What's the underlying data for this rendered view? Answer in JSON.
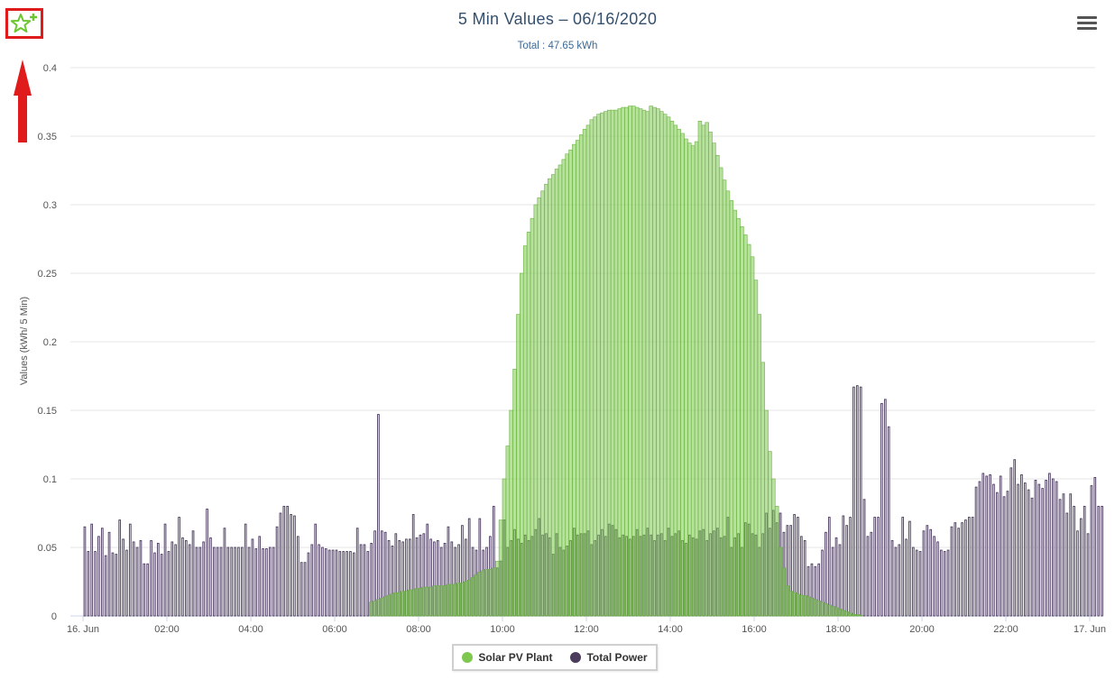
{
  "header": {
    "title": "5 Min Values – 06/16/2020",
    "subtitle": "Total : 47.65 kWh"
  },
  "colors": {
    "solar": "#7ec850",
    "total": "#4b3c5e",
    "annotation": "#e01b1b",
    "star": "#6cc62f"
  },
  "icons": {
    "favorite": "star-plus-icon",
    "menu": "hamburger-menu-icon",
    "annotation": "red-up-arrow"
  },
  "legend": {
    "items": [
      {
        "label": "Solar PV Plant",
        "color": "#7ec850"
      },
      {
        "label": "Total Power",
        "color": "#4b3c5e"
      }
    ]
  },
  "chart_data": {
    "type": "bar",
    "title": "5 Min Values – 06/16/2020",
    "subtitle": "Total : 47.65 kWh",
    "xlabel": "",
    "ylabel": "Values (kWh/ 5 Min)",
    "ylim": [
      0,
      0.4
    ],
    "yticks": [
      "0",
      "0.05",
      "0.1",
      "0.15",
      "0.2",
      "0.25",
      "0.3",
      "0.35",
      "0.4"
    ],
    "xticks": [
      "16. Jun",
      "02:00",
      "04:00",
      "06:00",
      "08:00",
      "10:00",
      "12:00",
      "14:00",
      "16:00",
      "18:00",
      "20:00",
      "22:00",
      "17. Jun"
    ],
    "interval_minutes": 5,
    "grid": true,
    "legend_position": "bottom",
    "series": [
      {
        "name": "Solar PV Plant",
        "color": "#7ec850",
        "values": [
          0,
          0,
          0,
          0,
          0,
          0,
          0,
          0,
          0,
          0,
          0,
          0,
          0,
          0,
          0,
          0,
          0,
          0,
          0,
          0,
          0,
          0,
          0,
          0,
          0,
          0,
          0,
          0,
          0,
          0,
          0,
          0,
          0,
          0,
          0,
          0,
          0,
          0,
          0,
          0,
          0,
          0,
          0,
          0,
          0,
          0,
          0,
          0,
          0,
          0,
          0,
          0,
          0,
          0,
          0,
          0,
          0,
          0,
          0,
          0,
          0,
          0,
          0,
          0,
          0,
          0,
          0,
          0,
          0,
          0,
          0,
          0,
          0,
          0,
          0,
          0,
          0,
          0,
          0,
          0,
          0,
          0,
          0.01,
          0.011,
          0.012,
          0.013,
          0.014,
          0.015,
          0.016,
          0.017,
          0.017,
          0.018,
          0.018,
          0.019,
          0.019,
          0.02,
          0.02,
          0.021,
          0.021,
          0.021,
          0.022,
          0.022,
          0.022,
          0.022,
          0.023,
          0.023,
          0.023,
          0.024,
          0.024,
          0.025,
          0.026,
          0.028,
          0.03,
          0.032,
          0.033,
          0.034,
          0.034,
          0.035,
          0.04,
          0.07,
          0.1,
          0.124,
          0.15,
          0.18,
          0.22,
          0.25,
          0.27,
          0.28,
          0.29,
          0.3,
          0.305,
          0.31,
          0.315,
          0.319,
          0.322,
          0.326,
          0.329,
          0.333,
          0.337,
          0.34,
          0.344,
          0.347,
          0.351,
          0.355,
          0.358,
          0.362,
          0.364,
          0.366,
          0.367,
          0.368,
          0.369,
          0.369,
          0.369,
          0.37,
          0.371,
          0.371,
          0.372,
          0.372,
          0.371,
          0.37,
          0.369,
          0.368,
          0.372,
          0.371,
          0.37,
          0.368,
          0.366,
          0.364,
          0.361,
          0.358,
          0.355,
          0.352,
          0.348,
          0.345,
          0.343,
          0.346,
          0.361,
          0.358,
          0.36,
          0.353,
          0.345,
          0.336,
          0.327,
          0.318,
          0.31,
          0.303,
          0.296,
          0.29,
          0.284,
          0.278,
          0.271,
          0.262,
          0.245,
          0.22,
          0.185,
          0.15,
          0.12,
          0.1,
          0.08,
          0.05,
          0.035,
          0.022,
          0.018,
          0.017,
          0.016,
          0.015,
          0.015,
          0.014,
          0.013,
          0.012,
          0.011,
          0.01,
          0.009,
          0.008,
          0.007,
          0.006,
          0.005,
          0.004,
          0.003,
          0.002,
          0.001,
          0.001,
          0.0005,
          0,
          0,
          0,
          0,
          0,
          0,
          0,
          0,
          0,
          0,
          0,
          0,
          0,
          0,
          0,
          0,
          0,
          0,
          0,
          0,
          0,
          0,
          0,
          0,
          0,
          0,
          0,
          0,
          0,
          0,
          0,
          0,
          0,
          0,
          0,
          0,
          0,
          0,
          0,
          0,
          0,
          0,
          0,
          0
        ]
      },
      {
        "name": "Total Power",
        "color": "#4b3c5e",
        "values": [
          0.065,
          0.047,
          0.067,
          0.047,
          0.058,
          0.064,
          0.044,
          0.061,
          0.046,
          0.045,
          0.07,
          0.056,
          0.048,
          0.067,
          0.054,
          0.05,
          0.055,
          0.038,
          0.038,
          0.055,
          0.046,
          0.053,
          0.045,
          0.067,
          0.047,
          0.054,
          0.052,
          0.072,
          0.057,
          0.055,
          0.052,
          0.062,
          0.05,
          0.05,
          0.054,
          0.078,
          0.057,
          0.05,
          0.05,
          0.05,
          0.064,
          0.05,
          0.05,
          0.05,
          0.05,
          0.05,
          0.067,
          0.05,
          0.056,
          0.049,
          0.058,
          0.049,
          0.049,
          0.05,
          0.05,
          0.065,
          0.075,
          0.08,
          0.08,
          0.074,
          0.073,
          0.058,
          0.039,
          0.039,
          0.046,
          0.052,
          0.067,
          0.052,
          0.05,
          0.049,
          0.048,
          0.048,
          0.048,
          0.047,
          0.047,
          0.047,
          0.047,
          0.046,
          0.064,
          0.052,
          0.052,
          0.047,
          0.053,
          0.062,
          0.147,
          0.062,
          0.061,
          0.055,
          0.051,
          0.06,
          0.055,
          0.054,
          0.056,
          0.056,
          0.074,
          0.057,
          0.059,
          0.06,
          0.067,
          0.056,
          0.054,
          0.055,
          0.05,
          0.053,
          0.065,
          0.054,
          0.05,
          0.052,
          0.066,
          0.056,
          0.071,
          0.05,
          0.048,
          0.071,
          0.048,
          0.05,
          0.058,
          0.08,
          0.035,
          0.04,
          0.07,
          0.05,
          0.055,
          0.063,
          0.056,
          0.053,
          0.059,
          0.055,
          0.058,
          0.063,
          0.071,
          0.059,
          0.06,
          0.057,
          0.045,
          0.06,
          0.05,
          0.048,
          0.051,
          0.055,
          0.064,
          0.059,
          0.06,
          0.06,
          0.062,
          0.052,
          0.055,
          0.059,
          0.063,
          0.058,
          0.067,
          0.066,
          0.063,
          0.057,
          0.059,
          0.058,
          0.056,
          0.058,
          0.063,
          0.058,
          0.059,
          0.064,
          0.059,
          0.055,
          0.059,
          0.06,
          0.055,
          0.064,
          0.058,
          0.06,
          0.062,
          0.055,
          0.053,
          0.059,
          0.057,
          0.056,
          0.062,
          0.063,
          0.055,
          0.06,
          0.062,
          0.064,
          0.057,
          0.058,
          0.072,
          0.05,
          0.057,
          0.06,
          0.05,
          0.068,
          0.067,
          0.06,
          0.059,
          0.05,
          0.06,
          0.075,
          0.064,
          0.077,
          0.068,
          0.075,
          0.061,
          0.066,
          0.066,
          0.074,
          0.072,
          0.058,
          0.055,
          0.036,
          0.038,
          0.036,
          0.038,
          0.048,
          0.061,
          0.072,
          0.05,
          0.057,
          0.052,
          0.073,
          0.066,
          0.072,
          0.167,
          0.168,
          0.167,
          0.085,
          0.058,
          0.061,
          0.072,
          0.072,
          0.155,
          0.158,
          0.138,
          0.055,
          0.05,
          0.052,
          0.072,
          0.056,
          0.069,
          0.05,
          0.048,
          0.047,
          0.062,
          0.066,
          0.063,
          0.058,
          0.054,
          0.048,
          0.047,
          0.048,
          0.065,
          0.068,
          0.064,
          0.068,
          0.07,
          0.072,
          0.072,
          0.094,
          0.098,
          0.104,
          0.102,
          0.103,
          0.096,
          0.09,
          0.102,
          0.087,
          0.091,
          0.108,
          0.114,
          0.096,
          0.103,
          0.097,
          0.092,
          0.086,
          0.099,
          0.096,
          0.093,
          0.099,
          0.104,
          0.1,
          0.098,
          0.085,
          0.089,
          0.075,
          0.089,
          0.08,
          0.062,
          0.071,
          0.08,
          0.06,
          0.095,
          0.101,
          0.08,
          0.08
        ]
      }
    ]
  }
}
